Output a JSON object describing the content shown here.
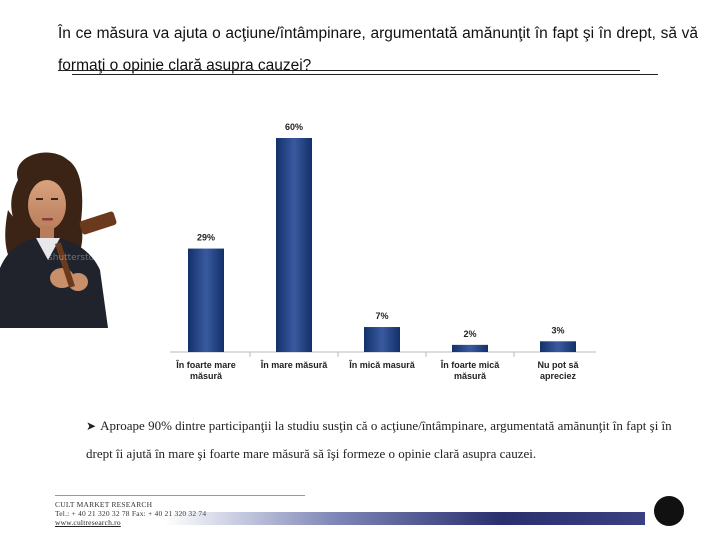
{
  "question": "În ce măsura va ajuta o acţiune/întâmpinare, argumentată amănunţit în fapt şi în drept, să vă formaţi o opinie clară asupra cauzei?",
  "chart_data": {
    "type": "bar",
    "categories": [
      "În foarte mare măsură",
      "În mare măsură",
      "În mică masură",
      "În foarte mică măsură",
      "Nu pot să apreciez"
    ],
    "values": [
      29,
      60,
      7,
      2,
      3
    ],
    "data_labels": [
      "29%",
      "60%",
      "7%",
      "2%",
      "3%"
    ],
    "title": "",
    "xlabel": "",
    "ylabel": "",
    "ylim": [
      0,
      60
    ],
    "grid": false,
    "legend": "none",
    "bar_color": "#12306a",
    "bar_highlight": "#3a5aa0"
  },
  "conclusion": "Aproape 90% dintre participanţii la studiu susţin că o acţiune/întâmpinare, argumentată amănunţit în fapt şi în drept îi ajută în mare şi foarte mare măsură să îşi formeze o opinie clară asupra cauzei.",
  "footer": {
    "company": "CULT MARKET RESEARCH",
    "contact": "Tel.: + 40 21 320 32 78  Fax: + 40 21 320 32 74",
    "web": "www.cultresearch.ro"
  },
  "photo_icon": "woman-with-gavel-photo",
  "logo_icon": "cult-logo-icon"
}
